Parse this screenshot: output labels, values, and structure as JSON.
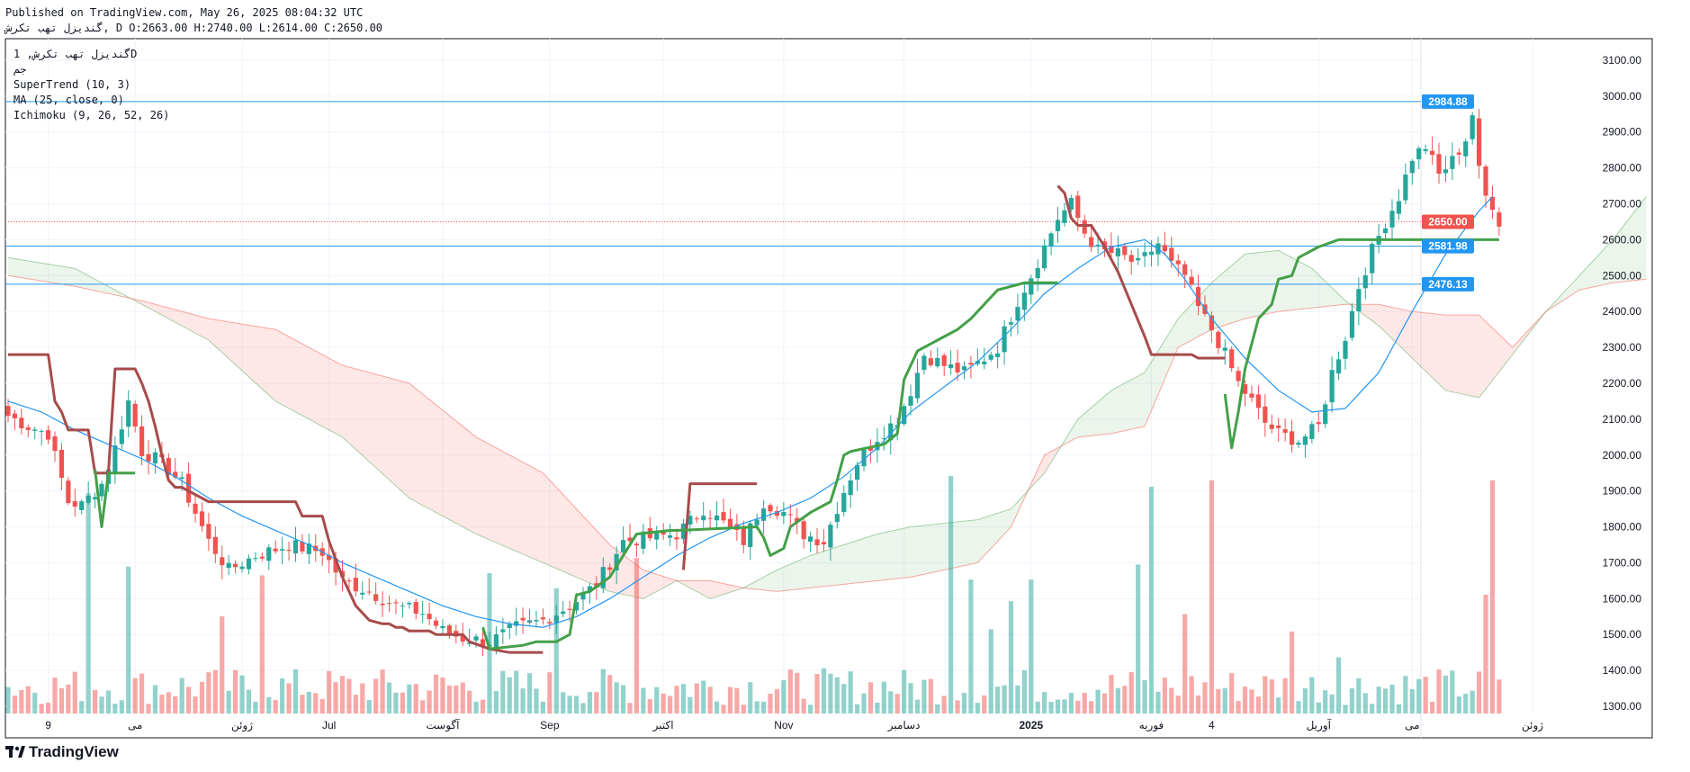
{
  "header": {
    "published": "Published on TradingView.com, May 26, 2025 08:04:32 UTC",
    "ohlc": "گندیزل تهب تکرش, D O:2663.00 H:2740.00 L:2614.00 C:2650.00"
  },
  "legend": {
    "symbol": "گندیزل تهب تکرش, 1D",
    "line2": "جم",
    "supertrend": "SuperTrend (10, 3)",
    "ma": "MA (25, close, 0)",
    "ichimoku": "Ichimoku (9, 26, 52, 26)"
  },
  "footer": {
    "brand": "TradingView"
  },
  "colors": {
    "up": "#26a69a",
    "down": "#ef5350",
    "st_up": "#43a047",
    "st_down": "#a74b4b",
    "ma": "#2196f3",
    "hline": "#2196f3",
    "last": "#ef5350"
  },
  "chart_data": {
    "type": "candlestick",
    "ylim": [
      1280,
      3160
    ],
    "y_ticks": [
      1300,
      1400,
      1500,
      1600,
      1700,
      1800,
      1900,
      2000,
      2100,
      2200,
      2300,
      2400,
      2500,
      2600,
      2700,
      2800,
      2900,
      3000,
      3100
    ],
    "x_labels": [
      {
        "i": 6,
        "label": "9"
      },
      {
        "i": 19,
        "label": "می"
      },
      {
        "i": 35,
        "label": "ژوئن"
      },
      {
        "i": 48,
        "label": "Jul"
      },
      {
        "i": 65,
        "label": "آگوست"
      },
      {
        "i": 81,
        "label": "Sep"
      },
      {
        "i": 98,
        "label": "اکتبر"
      },
      {
        "i": 116,
        "label": "Nov"
      },
      {
        "i": 134,
        "label": "دسامبر"
      },
      {
        "i": 153,
        "label": "2025"
      },
      {
        "i": 171,
        "label": "فوریه"
      },
      {
        "i": 180,
        "label": "4"
      },
      {
        "i": 196,
        "label": "آوریل"
      },
      {
        "i": 210,
        "label": "می"
      },
      {
        "i": 228,
        "label": "ژوئن"
      }
    ],
    "horizontal_lines": [
      2984.88,
      2581.98,
      2476.13
    ],
    "last_price": 2650.0,
    "price_tags": [
      {
        "value": 2984.88,
        "label": "2984.88",
        "color": "#2196f3"
      },
      {
        "value": 2650.0,
        "label": "2650.00",
        "color": "#ef5350"
      },
      {
        "value": 2581.98,
        "label": "2581.98",
        "color": "#2196f3"
      },
      {
        "value": 2476.13,
        "label": "2476.13",
        "color": "#2196f3"
      }
    ],
    "close_anchors": [
      [
        0,
        2110
      ],
      [
        3,
        2080
      ],
      [
        6,
        2060
      ],
      [
        9,
        1870
      ],
      [
        11,
        1860
      ],
      [
        14,
        1920
      ],
      [
        16,
        2020
      ],
      [
        18,
        2150
      ],
      [
        20,
        2010
      ],
      [
        22,
        1990
      ],
      [
        24,
        1960
      ],
      [
        26,
        1920
      ],
      [
        28,
        1840
      ],
      [
        30,
        1760
      ],
      [
        33,
        1680
      ],
      [
        37,
        1720
      ],
      [
        42,
        1750
      ],
      [
        47,
        1730
      ],
      [
        50,
        1650
      ],
      [
        54,
        1620
      ],
      [
        58,
        1580
      ],
      [
        62,
        1560
      ],
      [
        65,
        1510
      ],
      [
        68,
        1490
      ],
      [
        72,
        1480
      ],
      [
        76,
        1520
      ],
      [
        80,
        1540
      ],
      [
        84,
        1580
      ],
      [
        88,
        1640
      ],
      [
        92,
        1760
      ],
      [
        96,
        1770
      ],
      [
        100,
        1780
      ],
      [
        104,
        1850
      ],
      [
        107,
        1810
      ],
      [
        110,
        1760
      ],
      [
        113,
        1870
      ],
      [
        116,
        1840
      ],
      [
        119,
        1780
      ],
      [
        122,
        1760
      ],
      [
        125,
        1900
      ],
      [
        127,
        1980
      ],
      [
        130,
        2050
      ],
      [
        133,
        2100
      ],
      [
        135,
        2180
      ],
      [
        137,
        2280
      ],
      [
        140,
        2250
      ],
      [
        143,
        2230
      ],
      [
        146,
        2270
      ],
      [
        148,
        2300
      ],
      [
        151,
        2430
      ],
      [
        153,
        2500
      ],
      [
        155,
        2580
      ],
      [
        157,
        2660
      ],
      [
        159,
        2700
      ],
      [
        161,
        2620
      ],
      [
        163,
        2570
      ],
      [
        166,
        2560
      ],
      [
        169,
        2530
      ],
      [
        172,
        2590
      ],
      [
        174,
        2530
      ],
      [
        176,
        2500
      ],
      [
        178,
        2410
      ],
      [
        180,
        2350
      ],
      [
        182,
        2280
      ],
      [
        184,
        2200
      ],
      [
        186,
        2150
      ],
      [
        188,
        2090
      ],
      [
        190,
        2060
      ],
      [
        193,
        2040
      ],
      [
        196,
        2080
      ],
      [
        198,
        2230
      ],
      [
        200,
        2330
      ],
      [
        202,
        2470
      ],
      [
        204,
        2570
      ],
      [
        206,
        2650
      ],
      [
        208,
        2720
      ],
      [
        210,
        2830
      ],
      [
        212,
        2860
      ],
      [
        214,
        2780
      ],
      [
        216,
        2820
      ],
      [
        218,
        2880
      ],
      [
        219,
        2950
      ],
      [
        220,
        2790
      ],
      [
        221,
        2720
      ],
      [
        222,
        2700
      ],
      [
        223,
        2650
      ]
    ],
    "volume_range": [
      0,
      1000
    ],
    "volume_spikes": [
      [
        12,
        1020
      ],
      [
        18,
        680
      ],
      [
        32,
        450
      ],
      [
        38,
        640
      ],
      [
        72,
        650
      ],
      [
        82,
        580
      ],
      [
        94,
        720
      ],
      [
        141,
        1100
      ],
      [
        144,
        620
      ],
      [
        147,
        390
      ],
      [
        150,
        520
      ],
      [
        153,
        620
      ],
      [
        169,
        690
      ],
      [
        171,
        1050
      ],
      [
        176,
        460
      ],
      [
        180,
        1080
      ],
      [
        192,
        380
      ],
      [
        199,
        260
      ],
      [
        221,
        550
      ],
      [
        222,
        1080
      ]
    ],
    "supertrend_down": [
      [
        0,
        2280
      ],
      [
        4,
        2280
      ],
      [
        6,
        2280
      ],
      [
        7,
        2150
      ],
      [
        8,
        2120
      ],
      [
        9,
        2070
      ],
      [
        12,
        2070
      ],
      [
        13,
        1950
      ],
      [
        15,
        1950
      ],
      [
        16,
        2240
      ],
      [
        19,
        2240
      ],
      [
        20,
        2200
      ],
      [
        21,
        2150
      ],
      [
        22,
        2080
      ],
      [
        23,
        2000
      ],
      [
        24,
        1930
      ],
      [
        25,
        1910
      ],
      [
        26,
        1910
      ],
      [
        30,
        1870
      ],
      [
        43,
        1870
      ],
      [
        44,
        1830
      ],
      [
        47,
        1830
      ],
      [
        48,
        1760
      ],
      [
        50,
        1660
      ],
      [
        52,
        1580
      ],
      [
        54,
        1540
      ],
      [
        56,
        1530
      ],
      [
        57,
        1530
      ],
      [
        58,
        1520
      ],
      [
        59,
        1520
      ],
      [
        60,
        1510
      ],
      [
        63,
        1510
      ],
      [
        64,
        1500
      ],
      [
        68,
        1500
      ],
      [
        69,
        1480
      ],
      [
        72,
        1460
      ],
      [
        75,
        1450
      ],
      [
        80,
        1450
      ]
    ],
    "supertrend_down_2": [
      [
        101,
        1680
      ],
      [
        102,
        1920
      ],
      [
        110,
        1920
      ],
      [
        111,
        1920
      ],
      [
        112,
        1920
      ]
    ],
    "supertrend_down_3": [
      [
        157,
        2750
      ],
      [
        158,
        2730
      ],
      [
        159,
        2660
      ],
      [
        160,
        2640
      ],
      [
        162,
        2640
      ],
      [
        164,
        2580
      ],
      [
        166,
        2510
      ],
      [
        168,
        2420
      ],
      [
        170,
        2330
      ],
      [
        171,
        2280
      ],
      [
        177,
        2280
      ],
      [
        178,
        2270
      ],
      [
        179,
        2270
      ],
      [
        182,
        2270
      ]
    ],
    "supertrend_up": [
      [
        13,
        1960
      ],
      [
        14,
        1800
      ],
      [
        15,
        1950
      ],
      [
        18,
        1950
      ],
      [
        19,
        1950
      ]
    ],
    "supertrend_up_2": [
      [
        71,
        1520
      ],
      [
        72,
        1460
      ],
      [
        77,
        1470
      ],
      [
        79,
        1480
      ],
      [
        82,
        1480
      ],
      [
        84,
        1500
      ],
      [
        85,
        1610
      ],
      [
        87,
        1620
      ],
      [
        90,
        1660
      ],
      [
        91,
        1690
      ],
      [
        92,
        1720
      ],
      [
        94,
        1780
      ],
      [
        99,
        1790
      ],
      [
        100,
        1790
      ],
      [
        112,
        1800
      ],
      [
        113,
        1770
      ],
      [
        114,
        1720
      ],
      [
        116,
        1740
      ],
      [
        117,
        1800
      ],
      [
        120,
        1840
      ],
      [
        123,
        1870
      ],
      [
        124,
        1930
      ],
      [
        125,
        2000
      ],
      [
        126,
        2010
      ],
      [
        131,
        2030
      ],
      [
        133,
        2060
      ],
      [
        134,
        2210
      ],
      [
        136,
        2290
      ],
      [
        138,
        2310
      ],
      [
        140,
        2330
      ],
      [
        142,
        2350
      ],
      [
        144,
        2380
      ],
      [
        145,
        2400
      ],
      [
        146,
        2420
      ],
      [
        148,
        2460
      ],
      [
        150,
        2470
      ],
      [
        152,
        2480
      ],
      [
        157,
        2480
      ]
    ],
    "supertrend_up_3": [
      [
        182,
        2170
      ],
      [
        183,
        2020
      ],
      [
        184,
        2120
      ],
      [
        185,
        2240
      ],
      [
        187,
        2380
      ],
      [
        189,
        2420
      ],
      [
        190,
        2490
      ],
      [
        192,
        2500
      ],
      [
        193,
        2550
      ],
      [
        194,
        2560
      ],
      [
        195,
        2570
      ],
      [
        196,
        2580
      ],
      [
        199,
        2600
      ],
      [
        223,
        2600
      ]
    ],
    "ma_line": [
      [
        0,
        2150
      ],
      [
        5,
        2120
      ],
      [
        10,
        2070
      ],
      [
        15,
        2030
      ],
      [
        20,
        1990
      ],
      [
        25,
        1940
      ],
      [
        30,
        1880
      ],
      [
        35,
        1830
      ],
      [
        40,
        1790
      ],
      [
        45,
        1750
      ],
      [
        50,
        1700
      ],
      [
        55,
        1660
      ],
      [
        60,
        1620
      ],
      [
        65,
        1580
      ],
      [
        70,
        1550
      ],
      [
        75,
        1530
      ],
      [
        80,
        1520
      ],
      [
        85,
        1550
      ],
      [
        90,
        1600
      ],
      [
        95,
        1660
      ],
      [
        100,
        1720
      ],
      [
        105,
        1770
      ],
      [
        110,
        1810
      ],
      [
        115,
        1840
      ],
      [
        120,
        1880
      ],
      [
        125,
        1940
      ],
      [
        130,
        2020
      ],
      [
        135,
        2120
      ],
      [
        140,
        2190
      ],
      [
        145,
        2260
      ],
      [
        150,
        2350
      ],
      [
        155,
        2450
      ],
      [
        160,
        2520
      ],
      [
        165,
        2580
      ],
      [
        170,
        2600
      ],
      [
        173,
        2560
      ],
      [
        176,
        2490
      ],
      [
        180,
        2380
      ],
      [
        185,
        2270
      ],
      [
        190,
        2180
      ],
      [
        195,
        2120
      ],
      [
        200,
        2130
      ],
      [
        205,
        2230
      ],
      [
        210,
        2400
      ],
      [
        215,
        2560
      ],
      [
        220,
        2680
      ],
      [
        222,
        2720
      ]
    ],
    "cloud_a": [
      [
        0,
        2550
      ],
      [
        10,
        2520
      ],
      [
        20,
        2420
      ],
      [
        30,
        2320
      ],
      [
        40,
        2150
      ],
      [
        50,
        2050
      ],
      [
        60,
        1880
      ],
      [
        70,
        1780
      ],
      [
        80,
        1700
      ],
      [
        85,
        1660
      ],
      [
        90,
        1620
      ],
      [
        95,
        1600
      ],
      [
        100,
        1650
      ],
      [
        105,
        1600
      ],
      [
        110,
        1630
      ],
      [
        115,
        1680
      ],
      [
        120,
        1720
      ],
      [
        125,
        1750
      ],
      [
        130,
        1780
      ],
      [
        135,
        1800
      ],
      [
        140,
        1810
      ],
      [
        145,
        1820
      ],
      [
        150,
        1850
      ],
      [
        155,
        1950
      ],
      [
        160,
        2100
      ],
      [
        165,
        2180
      ],
      [
        170,
        2230
      ],
      [
        175,
        2380
      ],
      [
        180,
        2480
      ],
      [
        185,
        2560
      ],
      [
        190,
        2570
      ],
      [
        195,
        2520
      ],
      [
        200,
        2430
      ],
      [
        205,
        2360
      ],
      [
        210,
        2270
      ],
      [
        215,
        2180
      ],
      [
        220,
        2160
      ],
      [
        225,
        2280
      ],
      [
        230,
        2400
      ],
      [
        235,
        2500
      ],
      [
        240,
        2600
      ],
      [
        245,
        2720
      ]
    ],
    "cloud_b": [
      [
        0,
        2500
      ],
      [
        10,
        2470
      ],
      [
        20,
        2430
      ],
      [
        30,
        2380
      ],
      [
        40,
        2350
      ],
      [
        50,
        2250
      ],
      [
        60,
        2200
      ],
      [
        70,
        2050
      ],
      [
        80,
        1950
      ],
      [
        85,
        1850
      ],
      [
        90,
        1750
      ],
      [
        95,
        1680
      ],
      [
        100,
        1650
      ],
      [
        105,
        1650
      ],
      [
        110,
        1630
      ],
      [
        115,
        1620
      ],
      [
        120,
        1630
      ],
      [
        125,
        1640
      ],
      [
        130,
        1650
      ],
      [
        135,
        1660
      ],
      [
        140,
        1680
      ],
      [
        145,
        1700
      ],
      [
        150,
        1800
      ],
      [
        155,
        2000
      ],
      [
        160,
        2050
      ],
      [
        165,
        2060
      ],
      [
        170,
        2080
      ],
      [
        175,
        2300
      ],
      [
        180,
        2350
      ],
      [
        185,
        2380
      ],
      [
        190,
        2400
      ],
      [
        195,
        2410
      ],
      [
        200,
        2420
      ],
      [
        205,
        2420
      ],
      [
        210,
        2400
      ],
      [
        215,
        2390
      ],
      [
        220,
        2390
      ],
      [
        225,
        2300
      ],
      [
        230,
        2400
      ],
      [
        235,
        2460
      ],
      [
        240,
        2480
      ],
      [
        245,
        2490
      ]
    ]
  }
}
